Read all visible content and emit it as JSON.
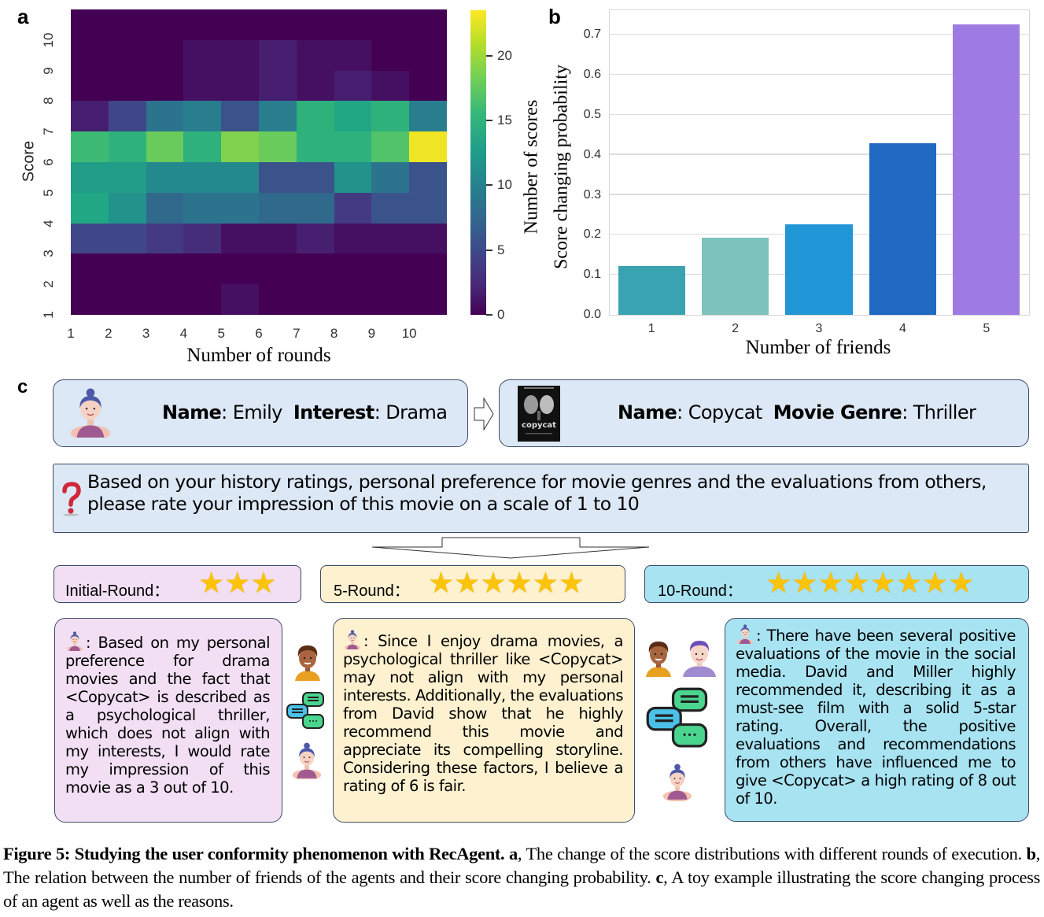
{
  "panels": {
    "a": {
      "letter": "a"
    },
    "b": {
      "letter": "b"
    },
    "c": {
      "letter": "c"
    }
  },
  "chart_data": [
    {
      "type": "heatmap",
      "title": "",
      "xlabel": "Number of rounds",
      "ylabel": "Score",
      "x": [
        1,
        2,
        3,
        4,
        5,
        6,
        7,
        8,
        9,
        10
      ],
      "y": [
        10,
        9,
        8,
        7,
        6,
        5,
        4,
        3,
        2,
        1
      ],
      "values": [
        [
          0,
          0,
          0,
          0,
          0,
          0,
          0,
          0,
          0,
          0
        ],
        [
          0,
          0,
          0,
          1,
          1,
          2,
          1,
          1,
          0,
          0
        ],
        [
          0,
          0,
          0,
          1,
          1,
          2,
          1,
          2,
          1,
          0
        ],
        [
          2,
          5,
          9,
          10,
          6,
          10,
          15,
          14,
          15,
          10
        ],
        [
          16,
          15,
          18,
          15,
          19,
          18,
          15,
          15,
          17,
          23
        ],
        [
          13,
          13,
          11,
          11,
          11,
          6,
          6,
          12,
          9,
          6
        ],
        [
          14,
          12,
          8,
          9,
          9,
          8,
          8,
          4,
          6,
          6
        ],
        [
          5,
          5,
          4,
          3,
          1,
          1,
          2,
          1,
          1,
          1
        ],
        [
          0,
          0,
          0,
          0,
          0,
          0,
          0,
          0,
          0,
          0
        ],
        [
          0,
          0,
          0,
          0,
          1,
          0,
          0,
          0,
          0,
          0
        ]
      ],
      "colormap": "viridis",
      "colorbar": {
        "label": "Number of scores",
        "range": [
          0,
          23.5
        ],
        "ticks": [
          0,
          5,
          10,
          15,
          20
        ]
      }
    },
    {
      "type": "bar",
      "title": "",
      "xlabel": "Number of friends",
      "ylabel": "Score changing probability",
      "categories": [
        "1",
        "2",
        "3",
        "4",
        "5"
      ],
      "values": [
        0.123,
        0.193,
        0.227,
        0.429,
        0.726
      ],
      "colors": [
        "#3aa3b1",
        "#7bc3bc",
        "#2196d6",
        "#1f69c3",
        "#9d7be2"
      ],
      "ylim": [
        0.0,
        0.76
      ],
      "yticks": [
        "0.0",
        "0.1",
        "0.2",
        "0.3",
        "0.4",
        "0.5",
        "0.6",
        "0.7"
      ],
      "grid": true
    }
  ],
  "example": {
    "user_card": {
      "name_label": "Name",
      "name_value": "Emily",
      "interest_label": "Interest",
      "interest_value": "Drama",
      "icon": "woman-avatar-icon"
    },
    "movie_card": {
      "name_label": "Name",
      "name_value": "Copycat",
      "genre_label": "Movie Genre",
      "genre_value": "Thriller",
      "poster_title": "copycat",
      "icon": "movie-poster-icon"
    },
    "prompt": {
      "icon": "question-mark-icon",
      "text": "Based on your history ratings, personal preference for movie genres and the evaluations from others, please rate your impression of this movie on a scale of 1 to 10"
    },
    "rounds": [
      {
        "label": "Initial-Round：",
        "stars": 3,
        "bg": "#f2dff4"
      },
      {
        "label": "5-Round：",
        "stars": 6,
        "bg": "#fdf1cf"
      },
      {
        "label": "10-Round：",
        "stars": 8,
        "bg": "#a8e3f2"
      }
    ],
    "responses": [
      {
        "text": ": Based on my personal preference for drama movies and the fact that <Copycat> is described as a psychological thriller, which does not align with my interests, I would rate my impression of this movie as a 3 out of 10."
      },
      {
        "text": ": Since I enjoy drama movies, a psychological thriller like <Copycat> may not align with my personal interests. Additionally, the evaluations from David show that he highly recommend this movie and appreciate its compelling storyline. Considering these factors, I believe a rating of 6 is fair."
      },
      {
        "text": ": There have been several positive evaluations of the movie in the social media. David and Miller highly recommended it, describing it as a must-see film with a solid 5-star rating. Overall, the positive evaluations and recommendations from others have influenced me to give <Copycat> a high rating of 8 out of 10."
      }
    ]
  },
  "caption": {
    "lead": "Figure 5: Studying the user conformity phenomenon with RecAgent.",
    "a_label": "a",
    "a_text": ", The change of the score distributions with different rounds of execution.",
    "b_label": "b",
    "b_text": ", The relation between the number of friends of the agents and their score changing probability.",
    "c_label": "c",
    "c_text": ", A toy example illustrating the score changing process of an agent as well as the reasons."
  }
}
